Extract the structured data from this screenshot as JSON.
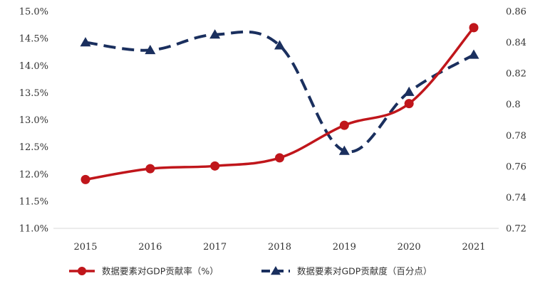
{
  "chart_data": {
    "type": "line",
    "title": "",
    "xlabel": "",
    "ylabel": "",
    "categories": [
      "2015",
      "2016",
      "2017",
      "2018",
      "2019",
      "2020",
      "2021"
    ],
    "y_left": {
      "lim": [
        11.0,
        15.0
      ],
      "ticks": [
        11.0,
        11.5,
        12.0,
        12.5,
        13.0,
        13.5,
        14.0,
        14.5,
        15.0
      ],
      "tick_labels": [
        "11.0%",
        "11.5%",
        "12.0%",
        "12.5%",
        "13.0%",
        "13.5%",
        "14.0%",
        "14.5%",
        "15.0%"
      ]
    },
    "y_right": {
      "lim": [
        0.72,
        0.86
      ],
      "ticks": [
        0.72,
        0.74,
        0.76,
        0.78,
        0.8,
        0.82,
        0.84,
        0.86
      ],
      "tick_labels": [
        "0.72",
        "0.74",
        "0.76",
        "0.78",
        "0.8",
        "0.82",
        "0.84",
        "0.86"
      ]
    },
    "series": [
      {
        "name": "数据要素对GDP贡献率（%）",
        "axis": "left",
        "color": "#c0161b",
        "style": "solid",
        "marker": "circle",
        "values": [
          11.9,
          12.1,
          12.15,
          12.3,
          12.9,
          13.3,
          14.7
        ]
      },
      {
        "name": "数据要素对GDP贡献度（百分点）",
        "axis": "right",
        "color": "#1a2f5e",
        "style": "dashed",
        "marker": "triangle",
        "values": [
          0.84,
          0.835,
          0.845,
          0.838,
          0.77,
          0.808,
          0.832
        ]
      }
    ],
    "grid": false,
    "legend_position": "bottom"
  }
}
